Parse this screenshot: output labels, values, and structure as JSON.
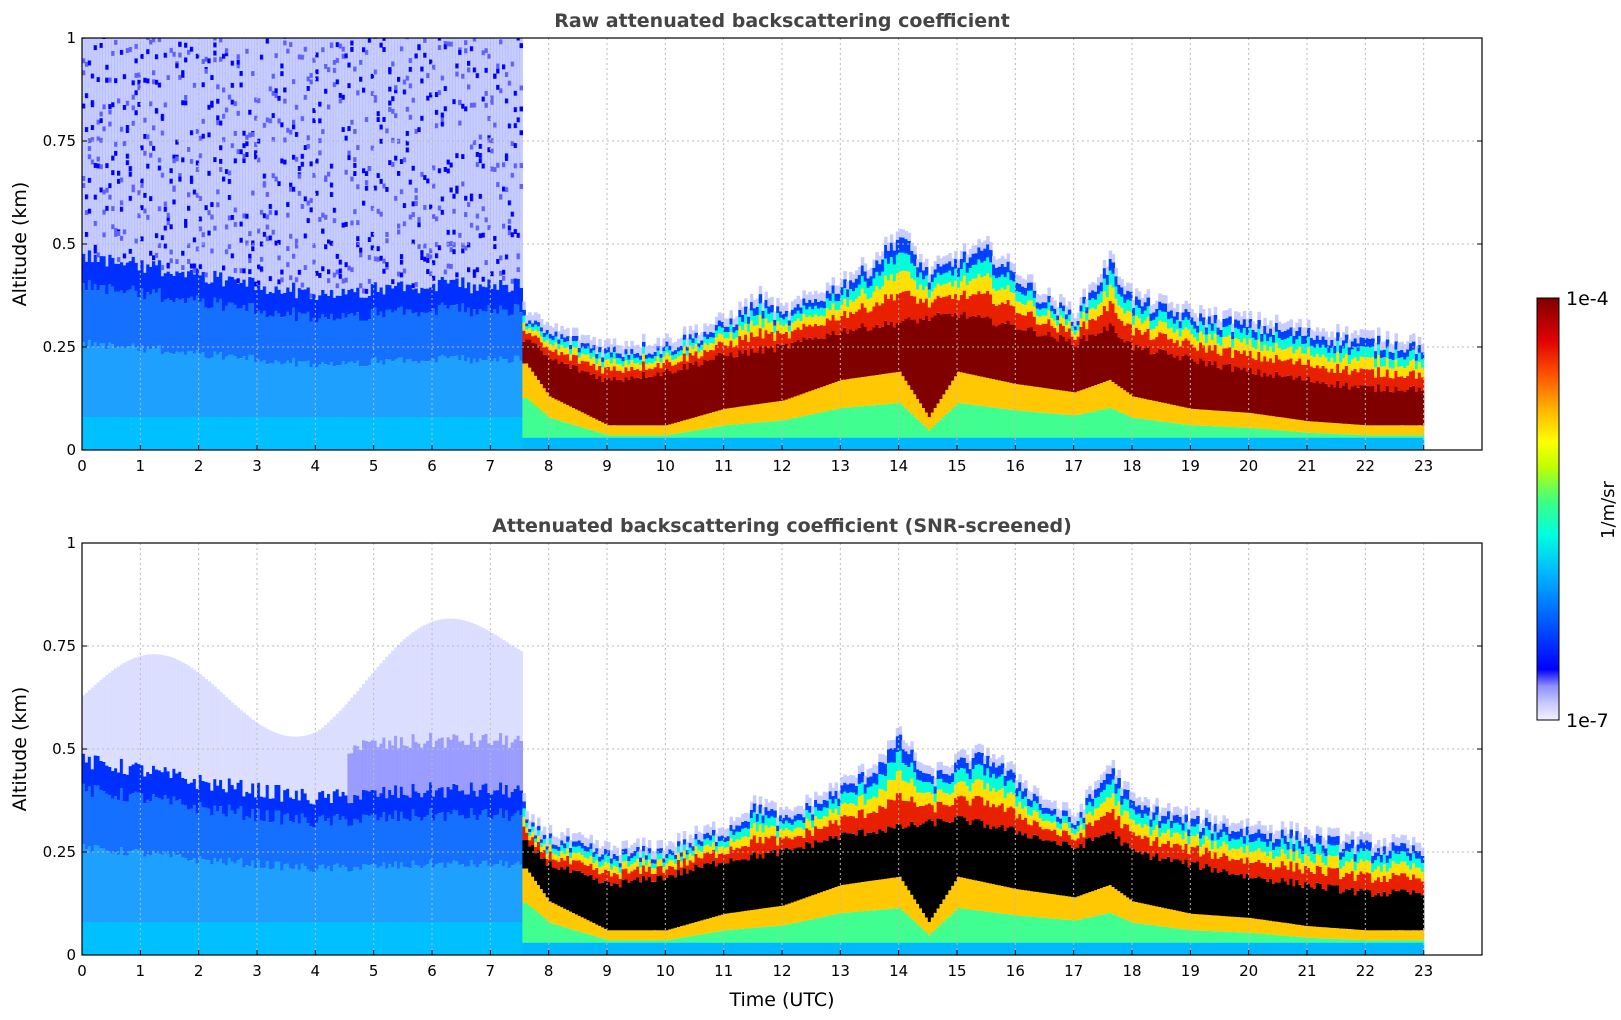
{
  "chart_data": [
    {
      "type": "heatmap",
      "title": "Raw attenuated backscattering coefficient",
      "ylabel": "Altitude (km)",
      "xlabel": "",
      "xlim": [
        0,
        24
      ],
      "ylim": [
        0,
        1
      ],
      "x_ticks": [
        "0",
        "1",
        "2",
        "3",
        "4",
        "5",
        "6",
        "7",
        "8",
        "9",
        "10",
        "11",
        "12",
        "13",
        "14",
        "15",
        "16",
        "17",
        "18",
        "19",
        "20",
        "21",
        "22",
        "23"
      ],
      "y_ticks": [
        "0",
        "0.25",
        "0.5",
        "0.75",
        "1"
      ],
      "grid": true,
      "data_end_time": 23,
      "transition_time": 7.5,
      "layer_top_km": [
        [
          0,
          0.47
        ],
        [
          1,
          0.45
        ],
        [
          2,
          0.42
        ],
        [
          3,
          0.4
        ],
        [
          4,
          0.38
        ],
        [
          5,
          0.39
        ],
        [
          6,
          0.4
        ],
        [
          7,
          0.4
        ],
        [
          7.5,
          0.4
        ],
        [
          7.6,
          0.31
        ],
        [
          8,
          0.28
        ],
        [
          9,
          0.24
        ],
        [
          10,
          0.25
        ],
        [
          11,
          0.3
        ],
        [
          11.6,
          0.36
        ],
        [
          12,
          0.32
        ],
        [
          12.5,
          0.36
        ],
        [
          13,
          0.4
        ],
        [
          13.5,
          0.44
        ],
        [
          14,
          0.52
        ],
        [
          14.5,
          0.42
        ],
        [
          15,
          0.46
        ],
        [
          15.5,
          0.48
        ],
        [
          16,
          0.42
        ],
        [
          16.5,
          0.36
        ],
        [
          17,
          0.32
        ],
        [
          17.6,
          0.45
        ],
        [
          18,
          0.36
        ],
        [
          19,
          0.32
        ],
        [
          20,
          0.3
        ],
        [
          21,
          0.28
        ],
        [
          22,
          0.26
        ],
        [
          23,
          0.25
        ]
      ],
      "core_top_km": [
        [
          7.6,
          0.27
        ],
        [
          8,
          0.22
        ],
        [
          9,
          0.17
        ],
        [
          10,
          0.19
        ],
        [
          11,
          0.23
        ],
        [
          12,
          0.25
        ],
        [
          13,
          0.29
        ],
        [
          14,
          0.31
        ],
        [
          15,
          0.33
        ],
        [
          16,
          0.3
        ],
        [
          17,
          0.26
        ],
        [
          17.6,
          0.3
        ],
        [
          18,
          0.25
        ],
        [
          19,
          0.22
        ],
        [
          20,
          0.19
        ],
        [
          21,
          0.17
        ],
        [
          22,
          0.15
        ],
        [
          23,
          0.15
        ]
      ],
      "core_bottom_km": [
        [
          7.6,
          0.21
        ],
        [
          8,
          0.13
        ],
        [
          9,
          0.06
        ],
        [
          10,
          0.06
        ],
        [
          11,
          0.1
        ],
        [
          12,
          0.12
        ],
        [
          13,
          0.17
        ],
        [
          14,
          0.19
        ],
        [
          14.5,
          0.08
        ],
        [
          15,
          0.19
        ],
        [
          16,
          0.16
        ],
        [
          17,
          0.14
        ],
        [
          17.6,
          0.17
        ],
        [
          18,
          0.13
        ],
        [
          19,
          0.1
        ],
        [
          20,
          0.09
        ],
        [
          21,
          0.07
        ],
        [
          22,
          0.06
        ],
        [
          23,
          0.06
        ]
      ]
    },
    {
      "type": "heatmap",
      "title": "Attenuated backscattering coefficient (SNR-screened)",
      "ylabel": "Altitude (km)",
      "xlabel": "Time (UTC)",
      "xlim": [
        0,
        24
      ],
      "ylim": [
        0,
        1
      ],
      "x_ticks": [
        "0",
        "1",
        "2",
        "3",
        "4",
        "5",
        "6",
        "7",
        "8",
        "9",
        "10",
        "11",
        "12",
        "13",
        "14",
        "15",
        "16",
        "17",
        "18",
        "19",
        "20",
        "21",
        "22",
        "23"
      ],
      "y_ticks": [
        "0",
        "0.25",
        "0.5",
        "0.75",
        "1"
      ],
      "grid": true,
      "data_end_time": 23,
      "transition_time": 7.5,
      "saturated_color": "#000000"
    }
  ],
  "colorbar": {
    "label": "1/m/sr",
    "max_label": "1e-4",
    "min_label": "1e-7",
    "colormap": [
      "#eeeeff",
      "#c8c8ff",
      "#9090ff",
      "#0000ff",
      "#0060ff",
      "#00c0ff",
      "#00ffe0",
      "#40ff80",
      "#c0ff00",
      "#ffff00",
      "#ffb000",
      "#ff5000",
      "#e00000",
      "#a00000",
      "#800000"
    ]
  }
}
